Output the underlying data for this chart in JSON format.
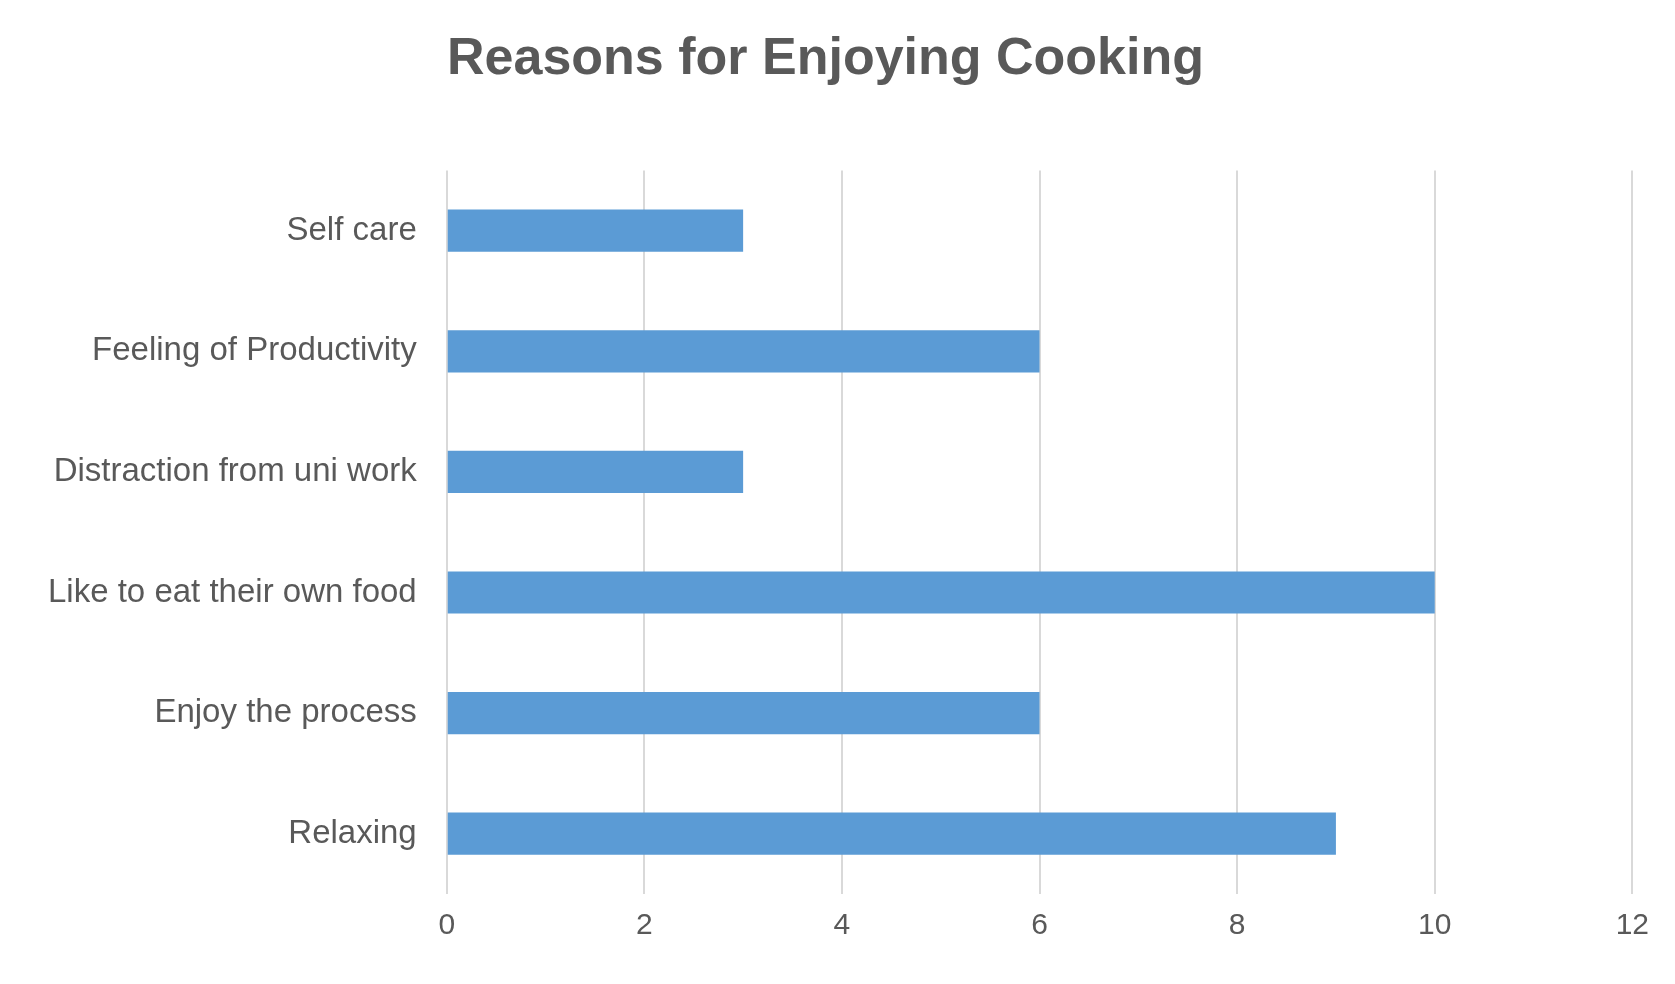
{
  "chart_data": {
    "type": "bar",
    "orientation": "horizontal",
    "title": "Reasons for Enjoying Cooking",
    "categories": [
      "Self care",
      "Feeling of Productivity",
      "Distraction from uni work",
      "Like to eat their own food",
      "Enjoy the process",
      "Relaxing"
    ],
    "values": [
      3,
      6,
      3,
      10,
      6,
      9
    ],
    "color": "#5b9bd5",
    "xlim": [
      0,
      12
    ],
    "xticks": [
      0,
      2,
      4,
      6,
      8,
      10,
      12
    ],
    "grid": "x"
  }
}
